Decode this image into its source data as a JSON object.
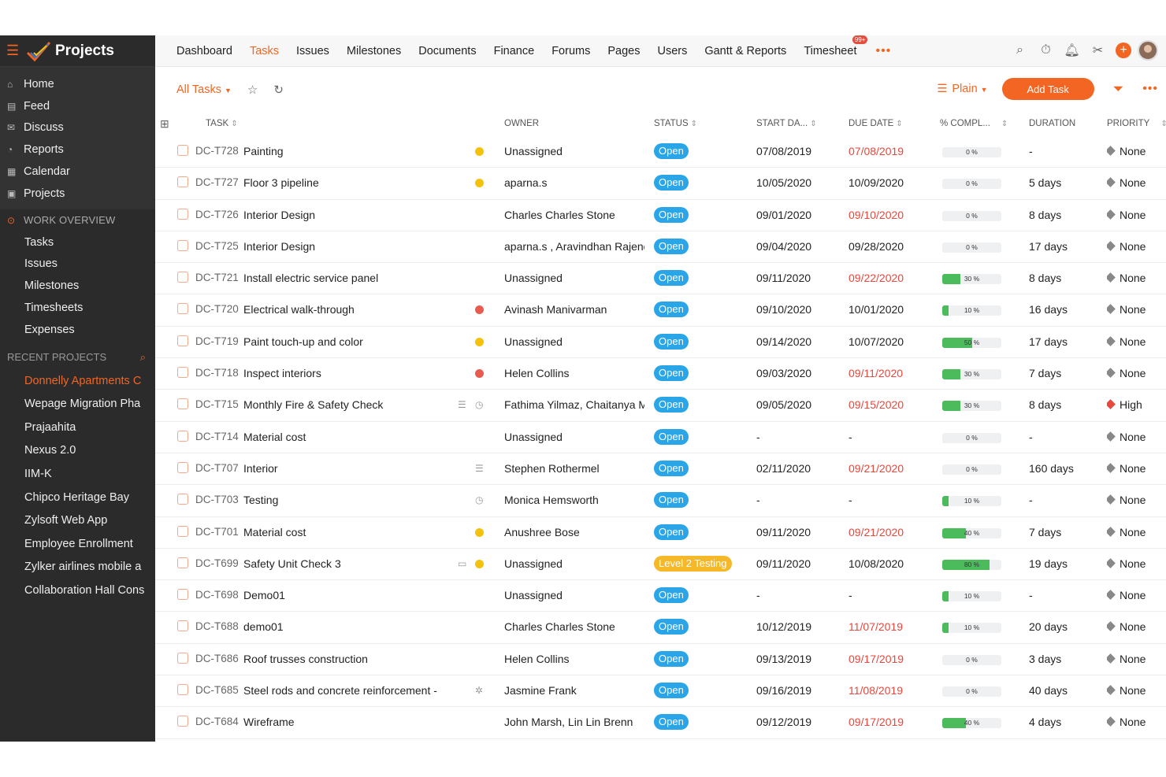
{
  "brand": {
    "title": "Projects"
  },
  "sidebar": {
    "main_items": [
      {
        "label": "Home",
        "icon": "home-icon"
      },
      {
        "label": "Feed",
        "icon": "feed-icon"
      },
      {
        "label": "Discuss",
        "icon": "discuss-icon"
      },
      {
        "label": "Reports",
        "icon": "reports-icon"
      },
      {
        "label": "Calendar",
        "icon": "calendar-icon"
      },
      {
        "label": "Projects",
        "icon": "projects-icon"
      }
    ],
    "work_overview_title": "WORK OVERVIEW",
    "work_items": [
      "Tasks",
      "Issues",
      "Milestones",
      "Timesheets",
      "Expenses"
    ],
    "recent_title": "RECENT PROJECTS",
    "recent_projects": [
      "Donnelly Apartments C",
      "Wepage Migration Pha",
      "Prajaahita",
      "Nexus 2.0",
      "IIM-K",
      "Chipco Heritage Bay",
      "Zylsoft Web App",
      "Employee Enrollment",
      "Zylker airlines mobile a",
      "Collaboration Hall Cons"
    ]
  },
  "topnav": {
    "tabs": [
      "Dashboard",
      "Tasks",
      "Issues",
      "Milestones",
      "Documents",
      "Finance",
      "Forums",
      "Pages",
      "Users",
      "Gantt & Reports",
      "Timesheet"
    ],
    "active_tab": "Tasks",
    "timesheet_badge": "99+"
  },
  "toolbar": {
    "view_label": "All Tasks",
    "layout_label": "Plain",
    "add_task_label": "Add Task"
  },
  "columns": {
    "task": "TASK",
    "owner": "OWNER",
    "status": "STATUS",
    "start": "START DA...",
    "due": "DUE DATE",
    "completion": "% COMPL...",
    "duration": "DURATION",
    "priority": "PRIORITY"
  },
  "colors": {
    "accent": "#f26522",
    "status_open": "#2aa6e8",
    "status_testing": "#f5b829",
    "overdue": "#e8473c",
    "progress": "#4cbb5c"
  },
  "tasks": [
    {
      "id": "DC-T728",
      "name": "Painting",
      "dot": "yellow",
      "icons": [],
      "owner": "Unassigned",
      "status": "Open",
      "start": "07/08/2019",
      "due": "07/08/2019",
      "overdue": true,
      "pct": 0,
      "pct_label": "0 %",
      "duration": "-",
      "priority": "None"
    },
    {
      "id": "DC-T727",
      "name": "Floor 3 pipeline",
      "dot": "yellow",
      "icons": [],
      "owner": "aparna.s",
      "status": "Open",
      "start": "10/05/2020",
      "due": "10/09/2020",
      "overdue": false,
      "pct": 0,
      "pct_label": "0 %",
      "duration": "5 days",
      "priority": "None"
    },
    {
      "id": "DC-T726",
      "name": "Interior Design",
      "dot": "",
      "icons": [],
      "owner": "Charles Charles Stone",
      "status": "Open",
      "start": "09/01/2020",
      "due": "09/10/2020",
      "overdue": true,
      "pct": 0,
      "pct_label": "0 %",
      "duration": "8 days",
      "priority": "None"
    },
    {
      "id": "DC-T725",
      "name": "Interior Design",
      "dot": "",
      "icons": [],
      "owner": "aparna.s , Aravindhan Rajendi",
      "status": "Open",
      "start": "09/04/2020",
      "due": "09/28/2020",
      "overdue": false,
      "pct": 0,
      "pct_label": "0 %",
      "duration": "17 days",
      "priority": "None"
    },
    {
      "id": "DC-T721",
      "name": "Install electric service panel",
      "dot": "",
      "icons": [],
      "owner": "Unassigned",
      "status": "Open",
      "start": "09/11/2020",
      "due": "09/22/2020",
      "overdue": true,
      "pct": 30,
      "pct_label": "30 %",
      "duration": "8 days",
      "priority": "None"
    },
    {
      "id": "DC-T720",
      "name": "Electrical walk-through",
      "dot": "red",
      "icons": [],
      "owner": "Avinash Manivarman",
      "status": "Open",
      "start": "09/10/2020",
      "due": "10/01/2020",
      "overdue": false,
      "pct": 10,
      "pct_label": "10 %",
      "duration": "16 days",
      "priority": "None"
    },
    {
      "id": "DC-T719",
      "name": "Paint touch-up and color",
      "dot": "yellow",
      "icons": [],
      "owner": "Unassigned",
      "status": "Open",
      "start": "09/14/2020",
      "due": "10/07/2020",
      "overdue": false,
      "pct": 50,
      "pct_label": "50 %",
      "duration": "17 days",
      "priority": "None"
    },
    {
      "id": "DC-T718",
      "name": "Inspect interiors",
      "dot": "red",
      "icons": [],
      "owner": "Helen Collins",
      "status": "Open",
      "start": "09/03/2020",
      "due": "09/11/2020",
      "overdue": true,
      "pct": 30,
      "pct_label": "30 %",
      "duration": "7 days",
      "priority": "None"
    },
    {
      "id": "DC-T715",
      "name": "Monthly Fire & Safety Check",
      "dot": "",
      "icons": [
        "list-icon",
        "clock-icon"
      ],
      "owner": "Fathima Yilmaz, Chaitanya Me",
      "status": "Open",
      "start": "09/05/2020",
      "due": "09/15/2020",
      "overdue": true,
      "pct": 30,
      "pct_label": "30 %",
      "duration": "8 days",
      "priority": "High"
    },
    {
      "id": "DC-T714",
      "name": "Material cost",
      "dot": "",
      "icons": [],
      "owner": "Unassigned",
      "status": "Open",
      "start": "-",
      "due": "-",
      "overdue": false,
      "pct": 0,
      "pct_label": "0 %",
      "duration": "-",
      "priority": "None"
    },
    {
      "id": "DC-T707",
      "name": "Interior",
      "dot": "",
      "icons": [
        "list-icon"
      ],
      "owner": "Stephen Rothermel",
      "status": "Open",
      "start": "02/11/2020",
      "due": "09/21/2020",
      "overdue": true,
      "pct": 0,
      "pct_label": "0 %",
      "duration": "160 days",
      "priority": "None"
    },
    {
      "id": "DC-T703",
      "name": "Testing",
      "dot": "",
      "icons": [
        "clock-icon"
      ],
      "owner": "Monica Hemsworth",
      "status": "Open",
      "start": "-",
      "due": "-",
      "overdue": false,
      "pct": 10,
      "pct_label": "10 %",
      "duration": "-",
      "priority": "None"
    },
    {
      "id": "DC-T701",
      "name": "Material cost",
      "dot": "yellow",
      "icons": [],
      "owner": "Anushree Bose",
      "status": "Open",
      "start": "09/11/2020",
      "due": "09/21/2020",
      "overdue": true,
      "pct": 40,
      "pct_label": "40 %",
      "duration": "7 days",
      "priority": "None"
    },
    {
      "id": "DC-T699",
      "name": "Safety Unit Check 3",
      "dot": "yellow",
      "icons": [
        "comment-icon"
      ],
      "owner": "Unassigned",
      "status": "Level 2 Testing",
      "start": "09/11/2020",
      "due": "10/08/2020",
      "overdue": false,
      "pct": 80,
      "pct_label": "80 %",
      "duration": "19 days",
      "priority": "None"
    },
    {
      "id": "DC-T698",
      "name": "Demo01",
      "dot": "",
      "icons": [],
      "owner": "Unassigned",
      "status": "Open",
      "start": "-",
      "due": "-",
      "overdue": false,
      "pct": 10,
      "pct_label": "10 %",
      "duration": "-",
      "priority": "None"
    },
    {
      "id": "DC-T688",
      "name": "demo01",
      "dot": "",
      "icons": [],
      "owner": "Charles Charles Stone",
      "status": "Open",
      "start": "10/12/2019",
      "due": "11/07/2019",
      "overdue": true,
      "pct": 10,
      "pct_label": "10 %",
      "duration": "20 days",
      "priority": "None"
    },
    {
      "id": "DC-T686",
      "name": "Roof trusses construction",
      "dot": "",
      "icons": [],
      "owner": "Helen Collins",
      "status": "Open",
      "start": "09/13/2019",
      "due": "09/17/2019",
      "overdue": true,
      "pct": 0,
      "pct_label": "0 %",
      "duration": "3 days",
      "priority": "None"
    },
    {
      "id": "DC-T685",
      "name": "Steel rods and concrete reinforcement -",
      "dot": "",
      "icons": [
        "bug-icon"
      ],
      "owner": "Jasmine Frank",
      "status": "Open",
      "start": "09/16/2019",
      "due": "11/08/2019",
      "overdue": true,
      "pct": 0,
      "pct_label": "0 %",
      "duration": "40 days",
      "priority": "None"
    },
    {
      "id": "DC-T684",
      "name": "Wireframe",
      "dot": "",
      "icons": [],
      "owner": "John Marsh, Lin Lin Brenn",
      "status": "Open",
      "start": "09/12/2019",
      "due": "09/17/2019",
      "overdue": true,
      "pct": 40,
      "pct_label": "40 %",
      "duration": "4 days",
      "priority": "None"
    }
  ]
}
